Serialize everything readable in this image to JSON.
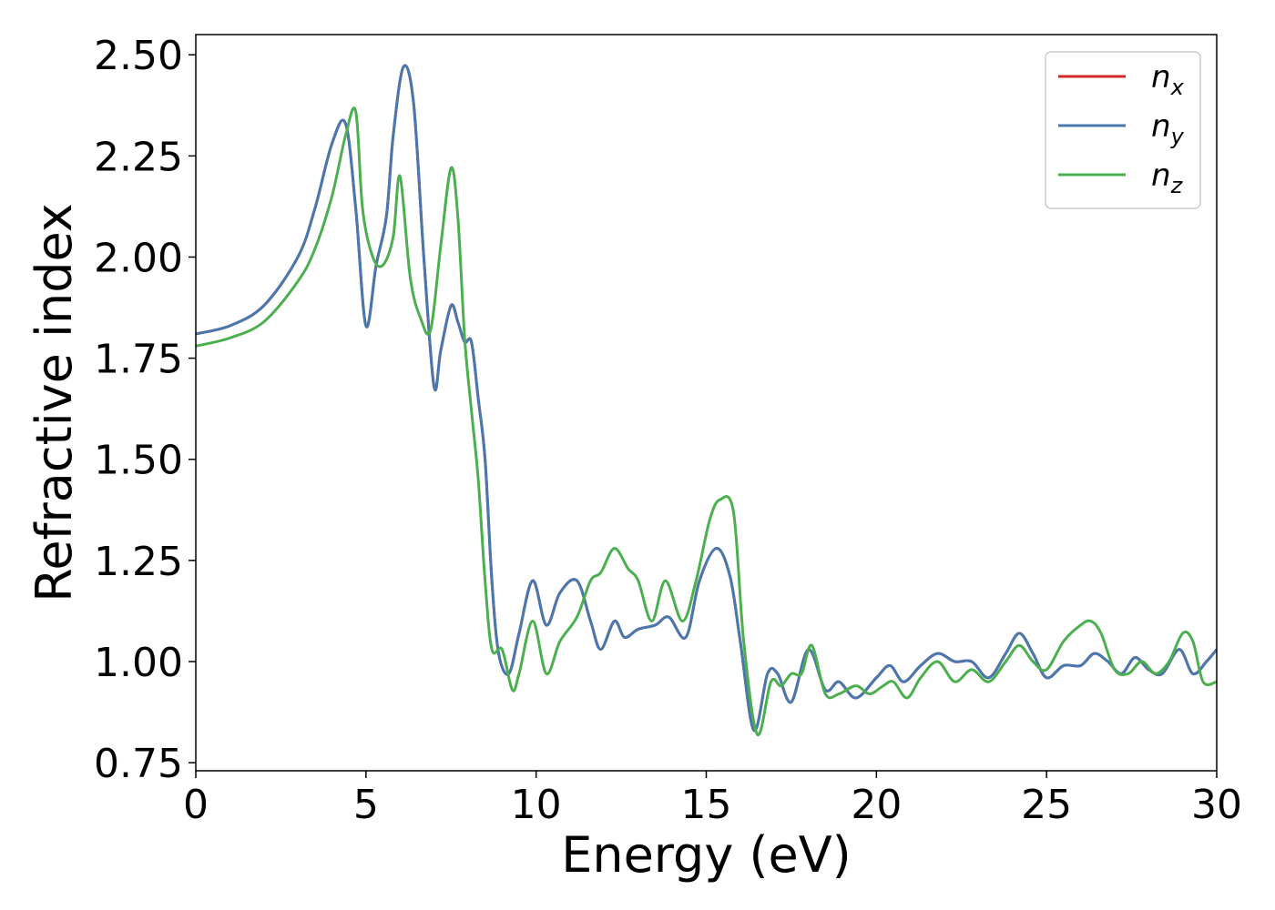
{
  "chart_data": {
    "type": "line",
    "title": "",
    "xlabel": "Energy (eV)",
    "ylabel": "Refractive index",
    "xlim": [
      0,
      30
    ],
    "ylim": [
      0.73,
      2.55
    ],
    "xticks": [
      0,
      5,
      10,
      15,
      20,
      25,
      30
    ],
    "xtick_labels": [
      "0",
      "5",
      "10",
      "15",
      "20",
      "25",
      "30"
    ],
    "yticks": [
      0.75,
      1.0,
      1.25,
      1.5,
      1.75,
      2.0,
      2.25,
      2.5
    ],
    "ytick_labels": [
      "0.75",
      "1.00",
      "1.25",
      "1.50",
      "1.75",
      "2.00",
      "2.25",
      "2.50"
    ],
    "grid": false,
    "legend_position": "top-right",
    "series": [
      {
        "name": "n",
        "subscript": "x",
        "color": "#d62728",
        "x": [
          0,
          1,
          2,
          3,
          3.5,
          4,
          4.4,
          4.7,
          5,
          5.3,
          5.6,
          5.8,
          6.1,
          6.4,
          6.7,
          7,
          7.2,
          7.5,
          7.7,
          7.9,
          8.1,
          8.3,
          8.5,
          8.7,
          8.9,
          9.2,
          9.5,
          9.9,
          10.3,
          10.7,
          11.2,
          11.6,
          11.9,
          12.3,
          12.6,
          13,
          13.5,
          13.9,
          14.4,
          14.8,
          15.3,
          15.7,
          16,
          16.4,
          16.8,
          17.1,
          17.5,
          18,
          18.5,
          18.9,
          19.4,
          20,
          20.4,
          20.8,
          21.3,
          21.8,
          22.3,
          22.8,
          23.3,
          23.8,
          24.2,
          24.6,
          25,
          25.5,
          26,
          26.4,
          26.8,
          27.2,
          27.6,
          28,
          28.4,
          28.9,
          29.3,
          29.7,
          30
        ],
        "values": [
          1.81,
          1.83,
          1.88,
          2.0,
          2.12,
          2.28,
          2.33,
          2.12,
          1.83,
          1.98,
          2.1,
          2.3,
          2.47,
          2.38,
          2.0,
          1.68,
          1.77,
          1.88,
          1.84,
          1.79,
          1.79,
          1.65,
          1.5,
          1.2,
          1.02,
          0.97,
          1.07,
          1.2,
          1.09,
          1.17,
          1.2,
          1.1,
          1.03,
          1.1,
          1.06,
          1.08,
          1.09,
          1.11,
          1.06,
          1.2,
          1.28,
          1.21,
          1.05,
          0.83,
          0.97,
          0.97,
          0.9,
          1.03,
          0.93,
          0.95,
          0.91,
          0.96,
          0.99,
          0.95,
          0.99,
          1.02,
          1.0,
          1.0,
          0.96,
          1.02,
          1.07,
          1.02,
          0.96,
          0.99,
          0.99,
          1.02,
          1.0,
          0.97,
          1.01,
          0.98,
          0.97,
          1.03,
          0.97,
          1.0,
          1.03
        ]
      },
      {
        "name": "n",
        "subscript": "y",
        "color": "#4878b0",
        "x": [
          0,
          1,
          2,
          3,
          3.5,
          4,
          4.4,
          4.7,
          5,
          5.3,
          5.6,
          5.8,
          6.1,
          6.4,
          6.7,
          7,
          7.2,
          7.5,
          7.7,
          7.9,
          8.1,
          8.3,
          8.5,
          8.7,
          8.9,
          9.2,
          9.5,
          9.9,
          10.3,
          10.7,
          11.2,
          11.6,
          11.9,
          12.3,
          12.6,
          13,
          13.5,
          13.9,
          14.4,
          14.8,
          15.3,
          15.7,
          16,
          16.4,
          16.8,
          17.1,
          17.5,
          18,
          18.5,
          18.9,
          19.4,
          20,
          20.4,
          20.8,
          21.3,
          21.8,
          22.3,
          22.8,
          23.3,
          23.8,
          24.2,
          24.6,
          25,
          25.5,
          26,
          26.4,
          26.8,
          27.2,
          27.6,
          28,
          28.4,
          28.9,
          29.3,
          29.7,
          30
        ],
        "values": [
          1.81,
          1.83,
          1.88,
          2.0,
          2.12,
          2.28,
          2.33,
          2.12,
          1.83,
          1.98,
          2.1,
          2.3,
          2.47,
          2.38,
          2.0,
          1.68,
          1.77,
          1.88,
          1.84,
          1.79,
          1.79,
          1.65,
          1.5,
          1.2,
          1.02,
          0.97,
          1.07,
          1.2,
          1.09,
          1.17,
          1.2,
          1.1,
          1.03,
          1.1,
          1.06,
          1.08,
          1.09,
          1.11,
          1.06,
          1.2,
          1.28,
          1.21,
          1.05,
          0.83,
          0.97,
          0.97,
          0.9,
          1.03,
          0.93,
          0.95,
          0.91,
          0.96,
          0.99,
          0.95,
          0.99,
          1.02,
          1.0,
          1.0,
          0.96,
          1.02,
          1.07,
          1.02,
          0.96,
          0.99,
          0.99,
          1.02,
          1.0,
          0.97,
          1.01,
          0.98,
          0.97,
          1.03,
          0.97,
          1.0,
          1.03
        ]
      },
      {
        "name": "n",
        "subscript": "z",
        "color": "#4caf4f",
        "x": [
          0,
          1,
          2,
          3,
          3.5,
          4,
          4.4,
          4.7,
          4.9,
          5.2,
          5.5,
          5.8,
          6.0,
          6.3,
          6.6,
          6.9,
          7.2,
          7.5,
          7.7,
          7.9,
          8.1,
          8.3,
          8.5,
          8.7,
          9.0,
          9.3,
          9.5,
          9.9,
          10.3,
          10.7,
          11.2,
          11.6,
          11.9,
          12.3,
          12.7,
          13,
          13.4,
          13.8,
          14.3,
          14.7,
          15.1,
          15.4,
          15.8,
          16.1,
          16.5,
          16.9,
          17.2,
          17.5,
          17.8,
          18.1,
          18.5,
          18.9,
          19.4,
          19.8,
          20.2,
          20.5,
          20.9,
          21.3,
          21.8,
          22.3,
          22.8,
          23.3,
          23.8,
          24.2,
          24.6,
          25,
          25.5,
          26,
          26.3,
          26.6,
          27,
          27.4,
          27.8,
          28.2,
          28.6,
          29,
          29.3,
          29.6,
          30
        ],
        "values": [
          1.78,
          1.8,
          1.84,
          1.94,
          2.02,
          2.15,
          2.3,
          2.36,
          2.12,
          2.0,
          1.98,
          2.05,
          2.2,
          1.95,
          1.85,
          1.82,
          2.03,
          2.22,
          2.1,
          1.8,
          1.62,
          1.45,
          1.2,
          1.03,
          1.03,
          0.93,
          0.97,
          1.1,
          0.97,
          1.05,
          1.11,
          1.2,
          1.22,
          1.28,
          1.23,
          1.2,
          1.1,
          1.2,
          1.1,
          1.2,
          1.35,
          1.4,
          1.37,
          1.05,
          0.82,
          0.95,
          0.94,
          0.97,
          0.97,
          1.04,
          0.92,
          0.92,
          0.94,
          0.92,
          0.94,
          0.95,
          0.91,
          0.96,
          1.0,
          0.95,
          0.98,
          0.95,
          1.0,
          1.04,
          1.0,
          0.98,
          1.05,
          1.09,
          1.1,
          1.07,
          0.98,
          0.97,
          1.0,
          0.97,
          1.0,
          1.07,
          1.05,
          0.95,
          0.95
        ]
      }
    ]
  }
}
